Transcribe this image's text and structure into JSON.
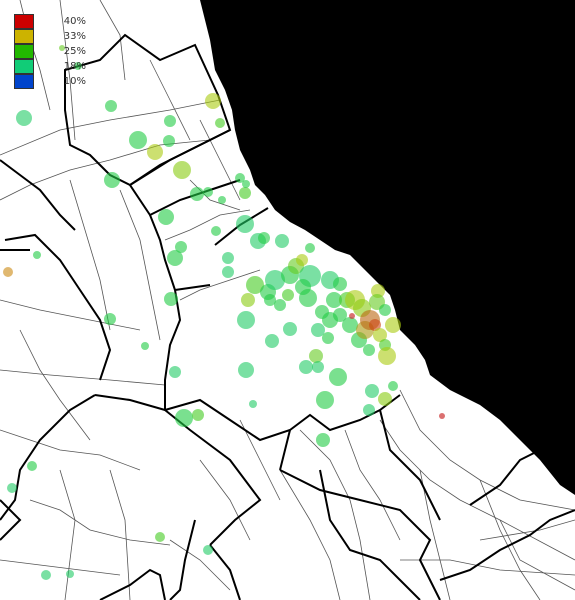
{
  "legend": {
    "items": [
      {
        "label": "40%",
        "color": "#cc0000"
      },
      {
        "label": "33%",
        "color": "#ccb300"
      },
      {
        "label": "25%",
        "color": "#22b800"
      },
      {
        "label": "18%",
        "color": "#11cc77"
      },
      {
        "label": "10%",
        "color": "#0044cc"
      }
    ]
  },
  "colors": {
    "water": "#000000",
    "land": "#ffffff",
    "major_boundary": "#000000",
    "minor_boundary": "#555555"
  }
}
